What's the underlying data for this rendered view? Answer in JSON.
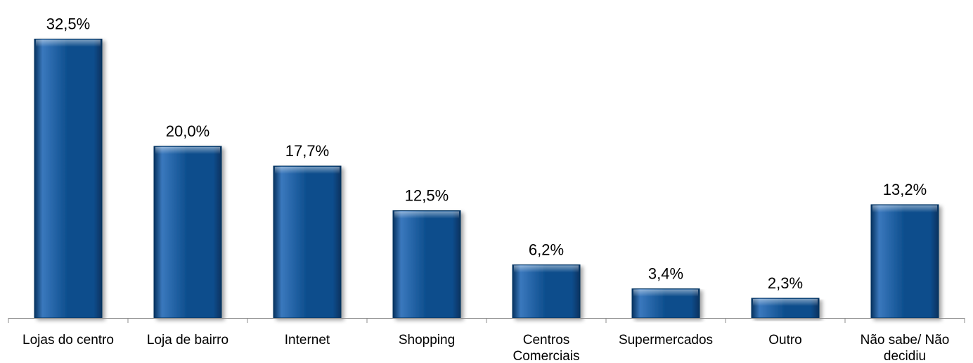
{
  "chart_data": {
    "type": "bar",
    "title": "",
    "xlabel": "",
    "ylabel": "",
    "ylim": [
      0,
      35
    ],
    "grid": false,
    "legend": "none",
    "categories": [
      [
        "Lojas do centro"
      ],
      [
        "Loja de bairro"
      ],
      [
        "Internet"
      ],
      [
        "Shopping"
      ],
      [
        "Centros",
        "Comerciais"
      ],
      [
        "Supermercados"
      ],
      [
        "Outro"
      ],
      [
        "Não sabe/ Não",
        "decidiu"
      ]
    ],
    "values": [
      32.5,
      20.0,
      17.7,
      12.5,
      6.2,
      3.4,
      2.3,
      13.2
    ],
    "value_labels": [
      "32,5%",
      "20,0%",
      "17,7%",
      "12,5%",
      "6,2%",
      "3,4%",
      "2,3%",
      "13,2%"
    ],
    "colors": {
      "bar": "#0c4d8c",
      "bar_light": "#3a78bd",
      "bar_dark": "#06325f",
      "axis": "#8c8c8c"
    }
  }
}
